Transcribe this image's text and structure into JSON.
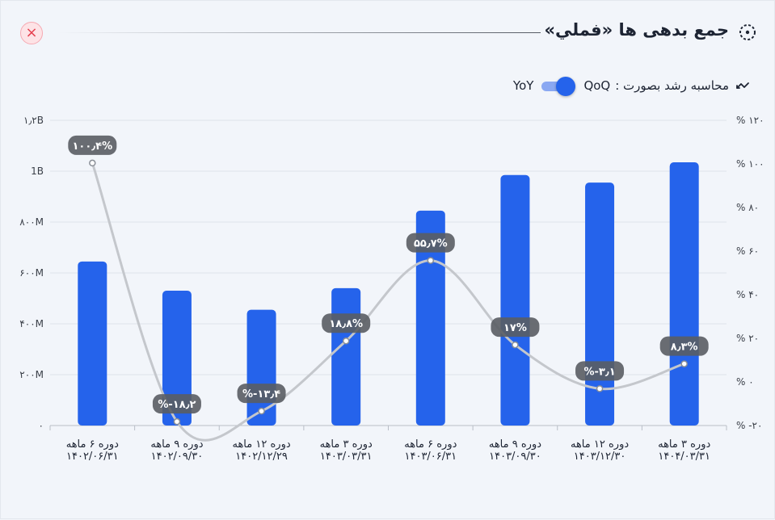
{
  "header": {
    "title": "جمع بدهی ها «فملي»",
    "close_label": "×"
  },
  "toggle": {
    "label": "محاسبه رشد بصورت :",
    "option_on": "QoQ",
    "option_off": "YoY",
    "selected": "QoQ"
  },
  "icons": {
    "close": "close-icon",
    "title": "dashed-circle-icon",
    "trend": "trend-arrow-icon"
  },
  "colors": {
    "bar": "#2563eb",
    "line": "#c4c7cc",
    "badge": "#5a5d63",
    "close": "#e5404f"
  },
  "chart_data": {
    "type": "bar",
    "categories": [
      [
        "دوره ۶ ماهه",
        "۱۴۰۲/۰۶/۳۱"
      ],
      [
        "دوره ۹ ماهه",
        "۱۴۰۲/۰۹/۳۰"
      ],
      [
        "دوره ۱۲ ماهه",
        "۱۴۰۲/۱۲/۲۹"
      ],
      [
        "دوره ۳ ماهه",
        "۱۴۰۳/۰۳/۳۱"
      ],
      [
        "دوره ۶ ماهه",
        "۱۴۰۳/۰۶/۳۱"
      ],
      [
        "دوره ۹ ماهه",
        "۱۴۰۳/۰۹/۳۰"
      ],
      [
        "دوره ۱۲ ماهه",
        "۱۴۰۳/۱۲/۳۰"
      ],
      [
        "دوره ۳ ماهه",
        "۱۴۰۴/۰۳/۳۱"
      ]
    ],
    "series": [
      {
        "type": "bar",
        "axis": "left",
        "values": [
          645,
          530,
          455,
          540,
          845,
          985,
          955,
          1035
        ]
      },
      {
        "type": "line",
        "axis": "right",
        "values": [
          100.4,
          -18.2,
          -13.4,
          18.8,
          55.7,
          17,
          -3.1,
          8.3
        ],
        "labels": [
          "۱۰۰٫۴%",
          "%-۱۸٫۲",
          "%-۱۳٫۴",
          "۱۸٫۸%",
          "۵۵٫۷%",
          "۱۷%",
          "%-۳٫۱",
          "۸٫۳%"
        ]
      }
    ],
    "y_left": {
      "min": 0,
      "max": 1200,
      "ticks": [
        0,
        200,
        400,
        600,
        800,
        1000,
        1200
      ],
      "tick_labels": [
        "۰",
        "۲۰۰M",
        "۴۰۰M",
        "۶۰۰M",
        "۸۰۰M",
        "1B",
        "۱٫۲B"
      ]
    },
    "y_right": {
      "min": -20,
      "max": 120,
      "ticks": [
        -20,
        0,
        20,
        40,
        60,
        80,
        100,
        120
      ],
      "tick_labels": [
        "% -۲۰",
        "% ۰",
        "% ۲۰",
        "% ۴۰",
        "% ۶۰",
        "% ۸۰",
        "% ۱۰۰",
        "% ۱۲۰"
      ]
    },
    "grid": true
  }
}
